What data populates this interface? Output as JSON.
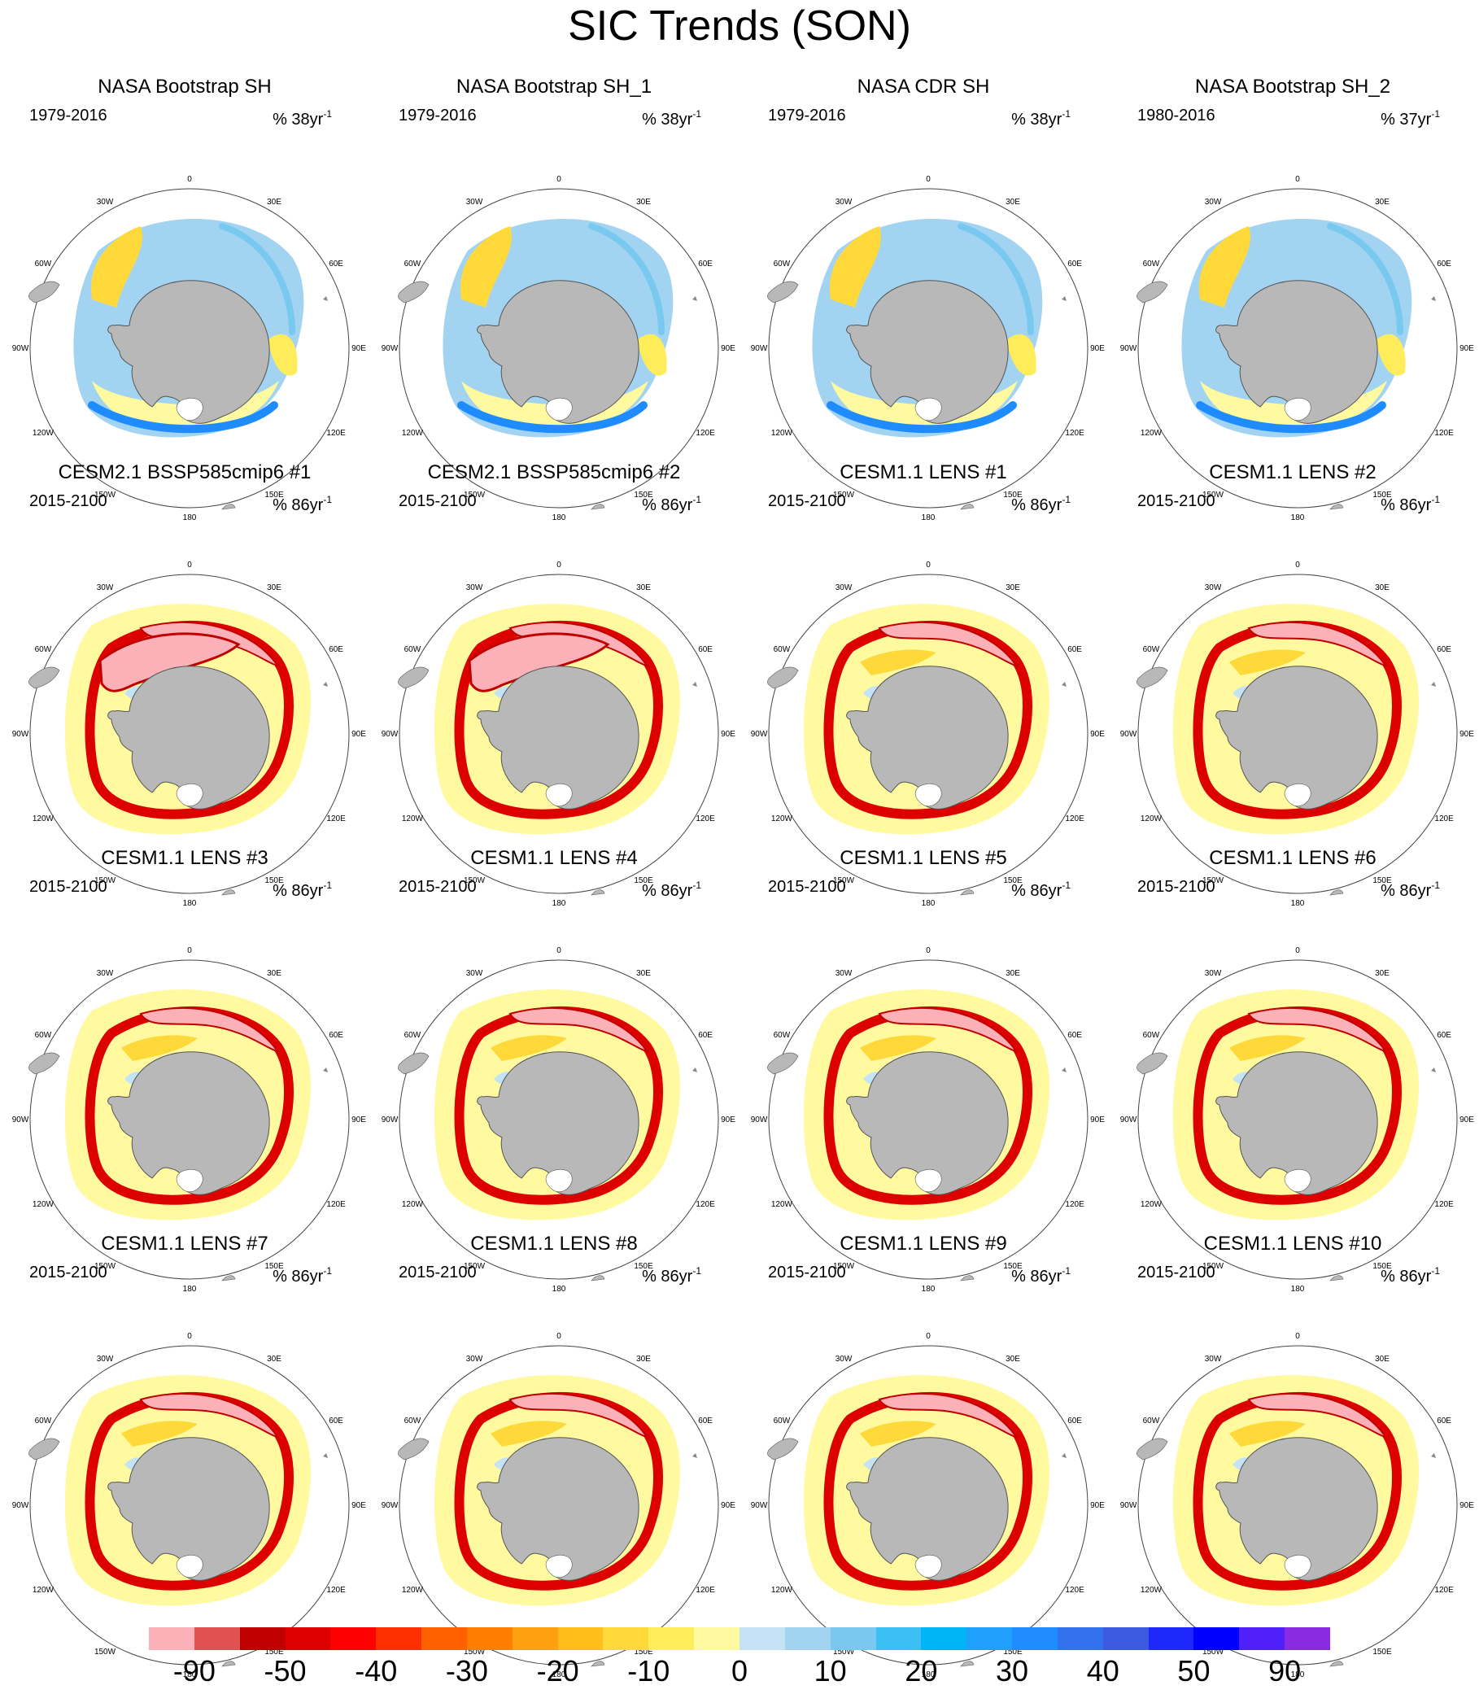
{
  "title": "SIC Trends (SON)",
  "panels": [
    {
      "title": "NASA Bootstrap SH",
      "years": "1979-2016",
      "units": "% 38yr",
      "exp": "-1",
      "style": "obs"
    },
    {
      "title": "NASA Bootstrap SH_1",
      "years": "1979-2016",
      "units": "% 38yr",
      "exp": "-1",
      "style": "obs"
    },
    {
      "title": "NASA CDR SH",
      "years": "1979-2016",
      "units": "% 38yr",
      "exp": "-1",
      "style": "obs"
    },
    {
      "title": "NASA Bootstrap SH_2",
      "years": "1980-2016",
      "units": "% 37yr",
      "exp": "-1",
      "style": "obs"
    },
    {
      "title": "CESM2.1 BSSP585cmip6 #1",
      "years": "2015-2100",
      "units": "% 86yr",
      "exp": "-1",
      "style": "cesm2"
    },
    {
      "title": "CESM2.1 BSSP585cmip6 #2",
      "years": "2015-2100",
      "units": "% 86yr",
      "exp": "-1",
      "style": "cesm2"
    },
    {
      "title": "CESM1.1 LENS #1",
      "years": "2015-2100",
      "units": "% 86yr",
      "exp": "-1",
      "style": "lens"
    },
    {
      "title": "CESM1.1 LENS #2",
      "years": "2015-2100",
      "units": "% 86yr",
      "exp": "-1",
      "style": "lens"
    },
    {
      "title": "CESM1.1 LENS #3",
      "years": "2015-2100",
      "units": "% 86yr",
      "exp": "-1",
      "style": "lens"
    },
    {
      "title": "CESM1.1 LENS #4",
      "years": "2015-2100",
      "units": "% 86yr",
      "exp": "-1",
      "style": "lens"
    },
    {
      "title": "CESM1.1 LENS #5",
      "years": "2015-2100",
      "units": "% 86yr",
      "exp": "-1",
      "style": "lens"
    },
    {
      "title": "CESM1.1 LENS #6",
      "years": "2015-2100",
      "units": "% 86yr",
      "exp": "-1",
      "style": "lens"
    },
    {
      "title": "CESM1.1 LENS #7",
      "years": "2015-2100",
      "units": "% 86yr",
      "exp": "-1",
      "style": "lens"
    },
    {
      "title": "CESM1.1 LENS #8",
      "years": "2015-2100",
      "units": "% 86yr",
      "exp": "-1",
      "style": "lens"
    },
    {
      "title": "CESM1.1 LENS #9",
      "years": "2015-2100",
      "units": "% 86yr",
      "exp": "-1",
      "style": "lens"
    },
    {
      "title": "CESM1.1 LENS #10",
      "years": "2015-2100",
      "units": "% 86yr",
      "exp": "-1",
      "style": "lens"
    }
  ],
  "lon_labels": [
    "0",
    "30E",
    "60E",
    "90E",
    "120E",
    "150E",
    "180",
    "150W",
    "120W",
    "90W",
    "60W",
    "30W"
  ],
  "colorbar": {
    "colors": [
      "#fbb1b7",
      "#e05252",
      "#c00000",
      "#dd0000",
      "#ff0000",
      "#ff3000",
      "#ff6000",
      "#ff8000",
      "#ffa010",
      "#ffbe1c",
      "#ffd93a",
      "#ffec5a",
      "#fffaa0",
      "#c4e4f6",
      "#a2d4f2",
      "#78c8f0",
      "#3cc0f4",
      "#00b4f8",
      "#1ea0fc",
      "#1e8cff",
      "#3270ee",
      "#3c5ae0",
      "#1e28fa",
      "#0000ff",
      "#5020f8",
      "#8a2be2"
    ],
    "tick_labels": [
      "-90",
      "-50",
      "-40",
      "-30",
      "-20",
      "-10",
      "0",
      "10",
      "20",
      "30",
      "40",
      "50",
      "90"
    ]
  }
}
